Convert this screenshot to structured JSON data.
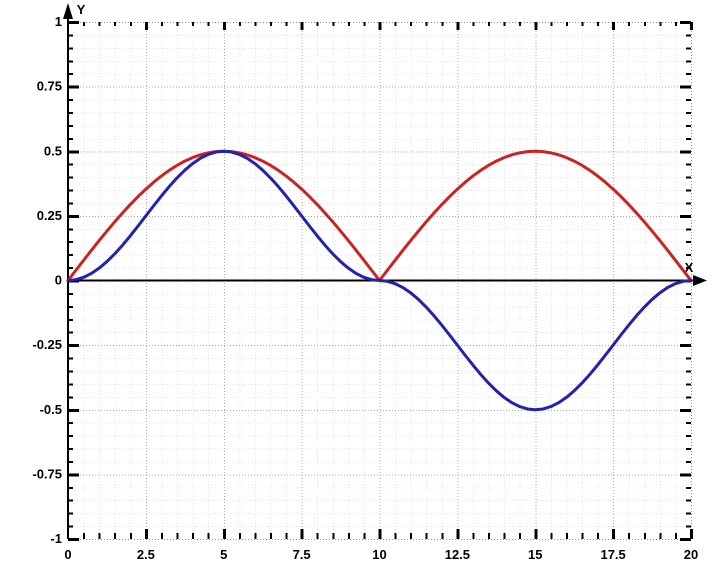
{
  "figure": {
    "background": "#FFFFFF",
    "axis_color": "#000000",
    "label_color": "#000000",
    "grid_minor_color": "#E3E3E3",
    "grid_major_color": "#A8A8A8",
    "border_color": "#8F8F8F"
  },
  "chart_data": {
    "type": "line",
    "title": "",
    "xlabel": "X",
    "ylabel": "Y",
    "xlim": [
      0,
      20
    ],
    "ylim": [
      -1,
      1
    ],
    "grid": "on",
    "legend": "none",
    "x_tick_values": [
      0,
      2.5,
      5,
      7.5,
      10,
      12.5,
      15,
      17.5,
      20
    ],
    "x_tick_labels": [
      "0",
      "2.5",
      "5",
      "7.5",
      "10",
      "12.5",
      "15",
      "17.5",
      "20"
    ],
    "y_tick_values": [
      1,
      0.75,
      0.5,
      0.25,
      0,
      -0.25,
      -0.5,
      -0.75,
      -1
    ],
    "y_tick_labels": [
      "1",
      "0.75",
      "0.5",
      "0.25",
      "0",
      "-0.25",
      "-0.5",
      "-0.75",
      "-1"
    ],
    "x_minor_step": 0.5,
    "y_minor_step": 0.05,
    "x": [
      0,
      0.25,
      0.5,
      0.75,
      1,
      1.25,
      1.5,
      1.75,
      2,
      2.25,
      2.5,
      2.75,
      3,
      3.25,
      3.5,
      3.75,
      4,
      4.25,
      4.5,
      4.75,
      5,
      5.25,
      5.5,
      5.75,
      6,
      6.25,
      6.5,
      6.75,
      7,
      7.25,
      7.5,
      7.75,
      8,
      8.25,
      8.5,
      8.75,
      9,
      9.25,
      9.5,
      9.75,
      10,
      10.25,
      10.5,
      10.75,
      11,
      11.25,
      11.5,
      11.75,
      12,
      12.25,
      12.5,
      12.75,
      13,
      13.25,
      13.5,
      13.75,
      14,
      14.25,
      14.5,
      14.75,
      15,
      15.25,
      15.5,
      15.75,
      16,
      16.25,
      16.5,
      16.75,
      17,
      17.25,
      17.5,
      17.75,
      18,
      18.25,
      18.5,
      18.75,
      19,
      19.25,
      19.5,
      19.75,
      20
    ],
    "series": [
      {
        "name": "red-curve",
        "color": "#CC2222",
        "width": 3,
        "y": [
          0,
          0.0392,
          0.0782,
          0.1167,
          0.1545,
          0.1913,
          0.227,
          0.2612,
          0.2939,
          0.3247,
          0.3536,
          0.3802,
          0.4045,
          0.4263,
          0.4455,
          0.4619,
          0.4755,
          0.4862,
          0.4938,
          0.4985,
          0.5,
          0.4985,
          0.4938,
          0.4862,
          0.4755,
          0.4619,
          0.4455,
          0.4263,
          0.4045,
          0.3802,
          0.3536,
          0.3247,
          0.2939,
          0.2612,
          0.227,
          0.1913,
          0.1545,
          0.1167,
          0.0782,
          0.0392,
          0,
          0.0392,
          0.0782,
          0.1167,
          0.1545,
          0.1913,
          0.227,
          0.2612,
          0.2939,
          0.3247,
          0.3536,
          0.3802,
          0.4045,
          0.4263,
          0.4455,
          0.4619,
          0.4755,
          0.4862,
          0.4938,
          0.4985,
          0.5,
          0.4985,
          0.4938,
          0.4862,
          0.4755,
          0.4619,
          0.4455,
          0.4263,
          0.4045,
          0.3802,
          0.3536,
          0.3247,
          0.2939,
          0.2612,
          0.227,
          0.1913,
          0.1545,
          0.1167,
          0.0782,
          0.0392,
          0
        ]
      },
      {
        "name": "blue-curve",
        "color": "#2222AA",
        "width": 3,
        "y": [
          0,
          0.0031,
          0.0122,
          0.0272,
          0.0477,
          0.0732,
          0.1031,
          0.1365,
          0.1727,
          0.2109,
          0.25,
          0.2891,
          0.3273,
          0.3635,
          0.3969,
          0.4268,
          0.4523,
          0.4728,
          0.4878,
          0.4969,
          0.5,
          0.4969,
          0.4878,
          0.4728,
          0.4523,
          0.4268,
          0.3969,
          0.3635,
          0.3273,
          0.2891,
          0.25,
          0.2109,
          0.1727,
          0.1365,
          0.1031,
          0.0732,
          0.0477,
          0.0272,
          0.0122,
          0.0031,
          0,
          -0.0031,
          -0.0122,
          -0.0272,
          -0.0477,
          -0.0732,
          -0.1031,
          -0.1365,
          -0.1727,
          -0.2109,
          -0.25,
          -0.2891,
          -0.3273,
          -0.3635,
          -0.3969,
          -0.4268,
          -0.4523,
          -0.4728,
          -0.4878,
          -0.4969,
          -0.5,
          -0.4969,
          -0.4878,
          -0.4728,
          -0.4523,
          -0.4268,
          -0.3969,
          -0.3635,
          -0.3273,
          -0.2891,
          -0.25,
          -0.2109,
          -0.1727,
          -0.1365,
          -0.1031,
          -0.0732,
          -0.0477,
          -0.0272,
          -0.0122,
          -0.0031,
          0
        ]
      }
    ]
  }
}
